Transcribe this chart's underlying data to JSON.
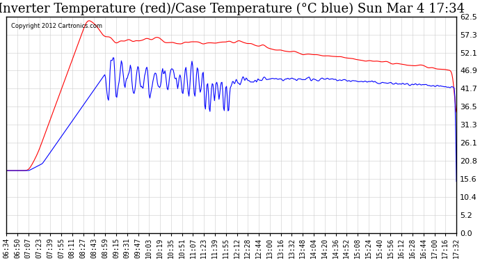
{
  "title": "Inverter Temperature (red)/Case Temperature (°C blue) Sun Mar 4 17:34",
  "copyright": "Copyright 2012 Cartronics.com",
  "ylim": [
    0.0,
    62.5
  ],
  "yticks": [
    0.0,
    5.2,
    10.4,
    15.6,
    20.8,
    26.1,
    31.3,
    36.5,
    41.7,
    46.9,
    52.1,
    57.3,
    62.5
  ],
  "background_color": "#ffffff",
  "plot_bg_color": "#ffffff",
  "grid_color": "#cccccc",
  "red_color": "#ff0000",
  "blue_color": "#0000ff",
  "title_fontsize": 13,
  "xlabel_fontsize": 7,
  "ylabel_fontsize": 8,
  "x_labels": [
    "06:34",
    "06:50",
    "07:07",
    "07:23",
    "07:39",
    "07:55",
    "08:11",
    "08:27",
    "08:43",
    "08:59",
    "09:15",
    "09:31",
    "09:47",
    "10:03",
    "10:19",
    "10:35",
    "10:51",
    "11:07",
    "11:23",
    "11:39",
    "11:55",
    "12:12",
    "12:28",
    "12:44",
    "13:00",
    "13:16",
    "13:32",
    "13:48",
    "14:04",
    "14:20",
    "14:36",
    "14:52",
    "15:08",
    "15:24",
    "15:40",
    "15:56",
    "16:12",
    "16:28",
    "16:44",
    "17:00",
    "17:16",
    "17:32"
  ]
}
